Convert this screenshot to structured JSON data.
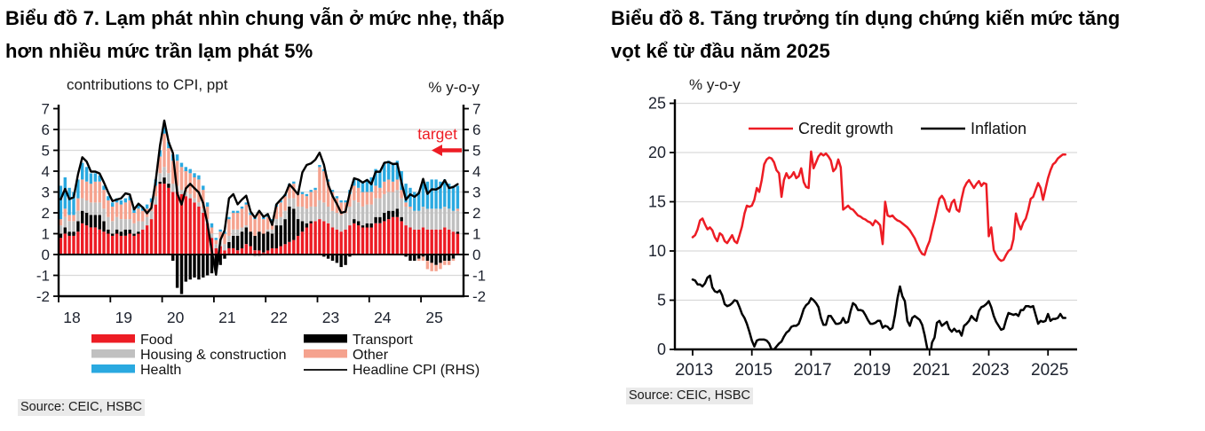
{
  "page": {
    "chart7_title": {
      "line1": "Biểu đồ 7. Lạm phát nhìn chung vẫn ở mức nhẹ, thấp",
      "line2": "hơn nhiều mức trần lạm phát 5%"
    },
    "chart8_title": {
      "line1": "Biểu đồ 8. Tăng trưởng tín dụng chứng kiến mức tăng",
      "line2": "vọt kể từ đầu năm 2025"
    }
  },
  "chart_data": [
    {
      "type": "bar",
      "title": "Biểu đồ 7. Lạm phát nhìn chung vẫn ở mức nhẹ, thấp hơn nhiều mức trần lạm phát 5%",
      "subtitle": "contributions to CPI, ppt",
      "right_axis_label": "% y-o-y",
      "source": "Source: CEIC, HSBC",
      "x_start_year": 2018,
      "x_ticks": [
        "18",
        "19",
        "20",
        "21",
        "22",
        "23",
        "24",
        "25"
      ],
      "ylim": [
        -2,
        7
      ],
      "yticks": [
        -2,
        -1,
        0,
        1,
        2,
        3,
        4,
        5,
        6,
        7
      ],
      "grid": true,
      "legend_position": "bottom",
      "annotation": {
        "label": "target",
        "y": 5,
        "color": "#ed1c24"
      },
      "colors": {
        "grid": "#d9d9d9",
        "axis": "#000000",
        "tick_text": "#1d222e"
      },
      "legend_columns": [
        [
          "Food",
          "Housing & construction",
          "Health"
        ],
        [
          "Transport",
          "Other",
          "Headline CPI (RHS)"
        ]
      ],
      "series": [
        {
          "name": "Food",
          "type": "bar",
          "color": "#ed1c24",
          "values": [
            0.8,
            1.0,
            0.9,
            0.9,
            1.1,
            1.5,
            1.4,
            1.3,
            1.3,
            1.2,
            1.1,
            1.0,
            0.9,
            1.0,
            0.9,
            0.9,
            1.0,
            0.9,
            1.0,
            1.2,
            1.4,
            1.7,
            2.4,
            3.4,
            3.4,
            3.2,
            3.0,
            3.0,
            2.9,
            2.8,
            2.7,
            2.5,
            2.3,
            2.0,
            1.5,
            0.8,
            0.3,
            0.4,
            0.2,
            0.3,
            0.3,
            0.2,
            0.3,
            0.5,
            0.4,
            0.2,
            0.2,
            0.1,
            0.2,
            0.3,
            0.3,
            0.4,
            0.5,
            0.6,
            0.7,
            0.9,
            1.1,
            1.3,
            1.5,
            1.6,
            1.7,
            1.6,
            1.5,
            1.3,
            1.2,
            1.1,
            1.2,
            1.4,
            1.5,
            1.4,
            1.3,
            1.3,
            1.3,
            1.5,
            1.5,
            1.6,
            1.7,
            1.8,
            1.8,
            1.6,
            1.4,
            1.3,
            1.2,
            1.2,
            1.3,
            1.2,
            1.2,
            1.2,
            1.2,
            1.3,
            1.2,
            1.1,
            1.0
          ]
        },
        {
          "name": "Transport",
          "type": "bar",
          "color": "#000000",
          "values": [
            0.2,
            0.3,
            0.2,
            0.2,
            0.5,
            0.6,
            0.6,
            0.6,
            0.6,
            0.7,
            0.5,
            0.2,
            0.1,
            0.2,
            0.2,
            0.3,
            0.2,
            0.1,
            0.1,
            0.0,
            0.0,
            0.0,
            0.0,
            0.1,
            0.3,
            0.2,
            -0.3,
            -1.6,
            -1.9,
            -1.3,
            -1.2,
            -1.1,
            -1.2,
            -1.1,
            -1.0,
            -0.9,
            -0.8,
            -0.5,
            -0.2,
            0.3,
            0.6,
            0.7,
            0.8,
            0.8,
            0.7,
            0.7,
            0.9,
            0.9,
            0.9,
            0.7,
            1.1,
            1.0,
            1.2,
            1.7,
            1.5,
            0.8,
            0.5,
            0.2,
            0.1,
            0.0,
            0.0,
            -0.1,
            -0.2,
            -0.3,
            -0.4,
            -0.6,
            -0.5,
            -0.1,
            0.2,
            0.2,
            0.1,
            0.2,
            0.2,
            0.3,
            0.3,
            0.4,
            0.4,
            0.3,
            0.4,
            0.2,
            -0.1,
            -0.3,
            -0.3,
            -0.2,
            -0.1,
            -0.3,
            -0.4,
            -0.5,
            -0.4,
            -0.3,
            -0.3,
            -0.2,
            0.1
          ]
        },
        {
          "name": "Housing & construction",
          "type": "bar",
          "color": "#c0c0c0",
          "values": [
            0.4,
            0.5,
            0.5,
            0.5,
            0.5,
            0.6,
            0.6,
            0.6,
            0.6,
            0.6,
            0.6,
            0.6,
            0.6,
            0.6,
            0.6,
            0.5,
            0.5,
            0.5,
            0.5,
            0.4,
            0.4,
            0.4,
            0.4,
            0.4,
            0.5,
            0.5,
            0.4,
            0.3,
            0.2,
            0.2,
            0.2,
            0.2,
            0.2,
            0.2,
            0.2,
            0.2,
            0.2,
            0.3,
            0.3,
            0.3,
            0.3,
            0.3,
            0.2,
            0.1,
            0.0,
            -0.1,
            -0.1,
            0.0,
            0.1,
            0.2,
            0.3,
            0.4,
            0.4,
            0.4,
            0.5,
            0.6,
            0.7,
            0.7,
            0.7,
            0.7,
            0.9,
            0.9,
            0.8,
            0.8,
            0.8,
            0.8,
            0.8,
            0.9,
            0.9,
            0.9,
            0.9,
            0.9,
            0.9,
            0.9,
            0.9,
            0.9,
            0.9,
            0.9,
            0.9,
            0.9,
            0.9,
            0.9,
            0.9,
            0.9,
            1.0,
            1.0,
            1.0,
            1.0,
            1.0,
            1.0,
            1.0,
            1.0,
            1.0
          ]
        },
        {
          "name": "Other",
          "type": "bar",
          "color": "#f5a28e",
          "values": [
            0.3,
            0.4,
            0.3,
            0.3,
            0.6,
            0.9,
            0.9,
            0.9,
            1.0,
            1.0,
            0.9,
            0.8,
            0.7,
            0.7,
            0.7,
            0.8,
            0.9,
            0.5,
            0.6,
            0.5,
            0.4,
            0.4,
            0.5,
            0.8,
            1.6,
            1.2,
            1.1,
            1.2,
            1.1,
            1.0,
            1.0,
            1.0,
            1.1,
            0.9,
            0.6,
            0.3,
            0.2,
            0.4,
            0.5,
            0.8,
            0.8,
            0.8,
            0.9,
            1.0,
            0.8,
            0.8,
            0.9,
            0.7,
            0.6,
            0.4,
            0.6,
            0.7,
            0.7,
            0.6,
            0.7,
            0.6,
            0.6,
            0.6,
            0.7,
            0.8,
            1.6,
            1.5,
            1.2,
            0.9,
            0.7,
            0.6,
            0.5,
            0.6,
            0.7,
            0.7,
            0.7,
            0.6,
            0.6,
            0.6,
            0.5,
            0.6,
            0.6,
            0.5,
            0.5,
            0.4,
            0.2,
            0.1,
            0.0,
            -0.1,
            -0.2,
            -0.4,
            -0.4,
            -0.3,
            -0.3,
            -0.2,
            -0.2,
            -0.1,
            0.1
          ]
        },
        {
          "name": "Health",
          "type": "bar",
          "color": "#2aa9e0",
          "values": [
            1.6,
            1.5,
            1.3,
            1.1,
            0.9,
            0.8,
            0.7,
            0.5,
            0.4,
            0.3,
            0.2,
            0.2,
            0.2,
            0.2,
            0.2,
            0.2,
            0.2,
            0.2,
            0.2,
            0.2,
            0.2,
            0.2,
            0.3,
            0.3,
            0.3,
            0.3,
            0.3,
            0.3,
            0.2,
            0.2,
            0.2,
            0.2,
            0.2,
            0.2,
            0.2,
            0.2,
            0.1,
            0.1,
            0.1,
            0.1,
            0.1,
            0.1,
            0.1,
            0.1,
            0.1,
            0.1,
            0.1,
            0.1,
            0.1,
            0.1,
            0.1,
            0.1,
            0.1,
            0.1,
            0.1,
            0.1,
            0.1,
            0.1,
            0.1,
            0.1,
            0.1,
            0.1,
            0.1,
            0.1,
            0.1,
            0.1,
            0.1,
            0.2,
            0.3,
            0.4,
            0.5,
            0.6,
            0.7,
            0.8,
            0.8,
            0.9,
            0.9,
            0.9,
            0.9,
            0.9,
            0.9,
            0.9,
            0.9,
            0.9,
            1.3,
            1.3,
            1.4,
            1.4,
            1.3,
            1.3,
            1.2,
            1.2,
            1.1
          ]
        },
        {
          "name": "Headline CPI (RHS)",
          "type": "line",
          "color": "#000000",
          "values": [
            2.65,
            3.15,
            2.66,
            2.75,
            3.86,
            4.67,
            4.46,
            3.98,
            3.98,
            3.89,
            3.46,
            2.98,
            2.56,
            2.64,
            2.7,
            2.93,
            2.88,
            2.16,
            2.44,
            2.26,
            1.98,
            2.24,
            3.52,
            5.23,
            6.43,
            5.4,
            4.87,
            2.93,
            2.4,
            3.17,
            3.39,
            3.18,
            2.98,
            2.47,
            1.48,
            0.19,
            -0.97,
            0.7,
            1.16,
            2.7,
            2.9,
            2.41,
            2.64,
            2.82,
            2.06,
            1.77,
            2.1,
            1.81,
            1.94,
            1.42,
            2.41,
            2.64,
            2.86,
            3.37,
            3.14,
            2.89,
            3.94,
            4.3,
            4.37,
            4.55,
            4.89,
            4.31,
            3.35,
            2.81,
            2.43,
            2.0,
            2.06,
            2.96,
            3.66,
            3.59,
            3.45,
            3.58,
            3.37,
            3.98,
            3.97,
            4.4,
            4.44,
            4.34,
            4.36,
            3.45,
            2.63,
            2.89,
            2.77,
            2.94,
            3.63,
            2.91,
            3.13,
            3.12,
            3.24,
            3.57,
            3.19,
            3.24,
            3.38
          ]
        }
      ]
    },
    {
      "type": "line",
      "title": "Biểu đồ 8. Tăng trưởng tín dụng chứng kiến mức tăng vọt kể từ đầu năm 2025",
      "axis_label": "% y-o-y",
      "source": "Source: CEIC, HSBC",
      "x_start_year": 2013,
      "x_ticks": [
        "2013",
        "2015",
        "2017",
        "2019",
        "2021",
        "2023",
        "2025"
      ],
      "ylim": [
        0,
        25
      ],
      "yticks": [
        0,
        5,
        10,
        15,
        20,
        25
      ],
      "grid": true,
      "legend_position": "top",
      "colors": {
        "grid": "#d9d9d9",
        "axis": "#000000",
        "tick_text": "#1d222e"
      },
      "series": [
        {
          "name": "Credit growth",
          "type": "line",
          "color": "#ed1c24",
          "values": [
            11.4,
            11.6,
            12.2,
            13.1,
            13.3,
            12.7,
            12.2,
            12.4,
            12.1,
            11.4,
            11.0,
            11.8,
            11.6,
            11.0,
            10.8,
            11.2,
            11.6,
            11.0,
            10.8,
            11.6,
            12.5,
            13.8,
            14.6,
            14.5,
            14.6,
            15.2,
            16.4,
            16.0,
            17.2,
            18.8,
            19.3,
            19.5,
            19.4,
            19.0,
            18.2,
            17.9,
            15.5,
            17.2,
            17.9,
            17.4,
            17.6,
            18.0,
            17.4,
            17.6,
            18.4,
            17.0,
            16.5,
            16.4,
            20.1,
            18.4,
            19.0,
            19.6,
            19.9,
            19.7,
            19.9,
            19.6,
            19.2,
            18.1,
            18.4,
            19.3,
            18.5,
            14.2,
            14.4,
            14.6,
            14.3,
            14.2,
            13.9,
            13.6,
            13.5,
            13.3,
            13.2,
            13.0,
            12.9,
            12.6,
            13.1,
            12.9,
            12.6,
            10.7,
            15.0,
            13.6,
            13.5,
            13.6,
            13.3,
            13.1,
            13.0,
            12.8,
            12.6,
            12.4,
            12.1,
            11.7,
            11.3,
            10.7,
            10.1,
            9.7,
            9.6,
            10.4,
            11.0,
            12.1,
            13.1,
            14.2,
            15.3,
            15.6,
            15.2,
            14.3,
            14.0,
            14.9,
            15.2,
            14.2,
            14.0,
            15.3,
            16.4,
            16.9,
            17.2,
            16.8,
            16.4,
            16.8,
            17.1,
            16.6,
            16.9,
            16.8,
            11.5,
            12.4,
            10.1,
            9.6,
            9.2,
            9.0,
            9.1,
            9.6,
            10.0,
            10.2,
            11.2,
            13.8,
            12.8,
            12.2,
            12.9,
            13.3,
            14.2,
            15.3,
            15.5,
            16.2,
            16.9,
            16.4,
            15.2,
            16.3,
            17.4,
            18.2,
            18.8,
            19.0,
            19.4,
            19.6,
            19.8,
            19.8
          ]
        },
        {
          "name": "Inflation",
          "type": "line",
          "color": "#000000",
          "values": [
            7.1,
            7.0,
            6.6,
            6.6,
            6.4,
            6.7,
            7.3,
            7.5,
            6.3,
            5.9,
            5.8,
            6.0,
            5.5,
            4.6,
            4.4,
            4.5,
            4.7,
            5.0,
            4.9,
            4.3,
            3.6,
            3.2,
            2.6,
            1.8,
            0.9,
            0.3,
            0.9,
            1.0,
            1.0,
            1.0,
            0.9,
            0.6,
            0.0,
            0.0,
            0.3,
            0.6,
            0.8,
            1.3,
            1.7,
            1.9,
            2.3,
            2.4,
            2.4,
            2.6,
            3.3,
            4.1,
            4.5,
            4.7,
            5.2,
            5.0,
            4.7,
            4.3,
            3.2,
            2.5,
            2.5,
            3.4,
            3.4,
            3.0,
            2.6,
            2.6,
            2.7,
            3.2,
            2.7,
            2.8,
            3.9,
            4.7,
            4.5,
            4.0,
            4.0,
            3.9,
            3.5,
            3.0,
            2.6,
            2.6,
            2.7,
            2.9,
            2.9,
            2.2,
            2.4,
            2.3,
            2.0,
            2.2,
            3.5,
            5.2,
            6.4,
            5.4,
            4.9,
            2.9,
            2.4,
            3.2,
            3.4,
            3.2,
            3.0,
            2.5,
            1.5,
            0.2,
            -1.0,
            0.7,
            1.2,
            2.7,
            2.9,
            2.4,
            2.6,
            2.8,
            2.1,
            1.8,
            2.1,
            1.8,
            1.9,
            1.4,
            2.4,
            2.6,
            2.9,
            3.4,
            3.1,
            2.9,
            3.9,
            4.3,
            4.4,
            4.6,
            4.9,
            4.3,
            3.4,
            2.8,
            2.4,
            2.0,
            2.1,
            3.0,
            3.7,
            3.6,
            3.5,
            3.6,
            3.4,
            4.0,
            4.0,
            4.4,
            4.4,
            4.3,
            4.4,
            3.5,
            2.6,
            2.9,
            2.8,
            2.9,
            3.6,
            2.9,
            3.1,
            3.1,
            3.2,
            3.6,
            3.2,
            3.2
          ]
        }
      ]
    }
  ]
}
